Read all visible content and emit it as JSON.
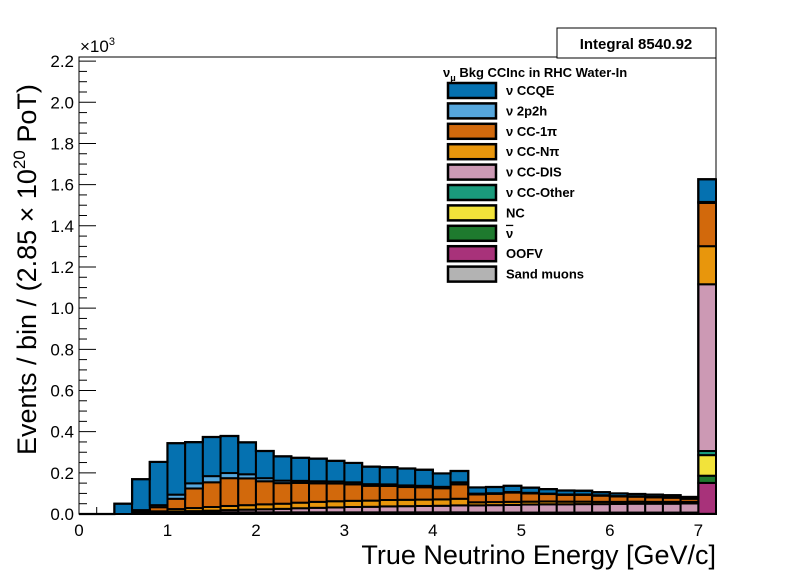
{
  "chart_data": {
    "type": "bar",
    "stacked": true,
    "histogram": true,
    "stats_box": "Integral 8540.92",
    "xlabel": "True Neutrino Energy [GeV/c]",
    "ylabel": "Events / bin / (2.85 × 10^20 PoT)",
    "ylabel_parts": {
      "prefix": "Events / bin / (2.85 × 10",
      "sup": "20",
      "suffix": " PoT)"
    },
    "y_multiplier": {
      "base": "×10",
      "exp": "3"
    },
    "xlim": [
      0,
      7.2
    ],
    "ylim": [
      0,
      2.22
    ],
    "x_ticks": [
      "0",
      "1",
      "2",
      "3",
      "4",
      "5",
      "6",
      "7"
    ],
    "y_ticks": [
      "0.0",
      "0.2",
      "0.4",
      "0.6",
      "0.8",
      "1.0",
      "1.2",
      "1.4",
      "1.6",
      "1.8",
      "2.0",
      "2.2"
    ],
    "legend": {
      "header": {
        "nu": "ν",
        "sub": "μ",
        "text": " Bkg CCInc in RHC Water-In"
      },
      "placement": "top-right"
    },
    "bin_edges": [
      0,
      0.2,
      0.4,
      0.6,
      0.8,
      1.0,
      1.2,
      1.4,
      1.6,
      1.8,
      2.0,
      2.2,
      2.4,
      2.6,
      2.8,
      3.0,
      3.2,
      3.4,
      3.6,
      3.8,
      4.0,
      4.2,
      4.4,
      4.6,
      4.8,
      5.0,
      5.2,
      5.4,
      5.6,
      5.8,
      6.0,
      6.2,
      6.4,
      6.6,
      6.8,
      7.0,
      7.2
    ],
    "series": [
      {
        "name": "Sand muons",
        "label": "Sand muons",
        "color": "#b3b3b3",
        "values": [
          0,
          0,
          0,
          0,
          0,
          0,
          0,
          0,
          0,
          0,
          0,
          0,
          0,
          0,
          0,
          0,
          0,
          0,
          0,
          0,
          0,
          0,
          0,
          0,
          0,
          0,
          0,
          0,
          0,
          0,
          0,
          0,
          0,
          0,
          0,
          0.001
        ]
      },
      {
        "name": "OOFV",
        "label": "OOFV",
        "color": "#a8327a",
        "values": [
          0,
          0,
          0,
          0.001,
          0.001,
          0.002,
          0.002,
          0.002,
          0.002,
          0.002,
          0.002,
          0.002,
          0.002,
          0.002,
          0.002,
          0.002,
          0.002,
          0.002,
          0.002,
          0.002,
          0.002,
          0.002,
          0.002,
          0.002,
          0.002,
          0.002,
          0.002,
          0.002,
          0.002,
          0.002,
          0.002,
          0.002,
          0.002,
          0.002,
          0.002,
          0.15
        ]
      },
      {
        "name": "νbar",
        "label": "ν",
        "overline": true,
        "color": "#1e7a2e",
        "values": [
          0,
          0,
          0,
          0,
          0,
          0.001,
          0.001,
          0.001,
          0.001,
          0.001,
          0.001,
          0.001,
          0.001,
          0.001,
          0.001,
          0.001,
          0.001,
          0.001,
          0.001,
          0.001,
          0.001,
          0.001,
          0.001,
          0.001,
          0.001,
          0.001,
          0.001,
          0.001,
          0.001,
          0.001,
          0.001,
          0.001,
          0.001,
          0.001,
          0.001,
          0.035
        ]
      },
      {
        "name": "NC",
        "label": "NC",
        "color": "#f2e33a",
        "values": [
          0,
          0,
          0,
          0.002,
          0.003,
          0.004,
          0.004,
          0.004,
          0.004,
          0.004,
          0.004,
          0.004,
          0.004,
          0.004,
          0.004,
          0.004,
          0.004,
          0.004,
          0.004,
          0.004,
          0.004,
          0.004,
          0.003,
          0.003,
          0.003,
          0.003,
          0.003,
          0.003,
          0.003,
          0.003,
          0.003,
          0.003,
          0.003,
          0.003,
          0.003,
          0.1
        ]
      },
      {
        "name": "ν CC-Other",
        "label": "ν CC-Other",
        "color": "#1a9b7c",
        "values": [
          0,
          0,
          0,
          0,
          0,
          0.001,
          0.001,
          0.001,
          0.001,
          0.001,
          0.001,
          0.001,
          0.001,
          0.001,
          0.001,
          0.001,
          0.001,
          0.001,
          0.001,
          0.001,
          0.001,
          0.001,
          0.001,
          0.001,
          0.001,
          0.001,
          0.001,
          0.001,
          0.001,
          0.001,
          0.001,
          0.001,
          0.001,
          0.001,
          0.001,
          0.02
        ]
      },
      {
        "name": "ν CC-DIS",
        "label": "ν CC-DIS",
        "color": "#cc99b4",
        "values": [
          0,
          0,
          0,
          0,
          0.002,
          0.004,
          0.006,
          0.008,
          0.011,
          0.013,
          0.015,
          0.017,
          0.02,
          0.022,
          0.024,
          0.026,
          0.027,
          0.029,
          0.03,
          0.031,
          0.032,
          0.034,
          0.035,
          0.036,
          0.037,
          0.039,
          0.04,
          0.04,
          0.041,
          0.041,
          0.042,
          0.043,
          0.043,
          0.043,
          0.044,
          0.81
        ]
      },
      {
        "name": "ν CC-Nπ",
        "label": "ν CC-Nπ",
        "color": "#e8960c",
        "values": [
          0,
          0,
          0,
          0.003,
          0.007,
          0.012,
          0.015,
          0.018,
          0.02,
          0.022,
          0.024,
          0.025,
          0.027,
          0.029,
          0.03,
          0.03,
          0.03,
          0.031,
          0.031,
          0.031,
          0.031,
          0.032,
          0.015,
          0.015,
          0.015,
          0.014,
          0.014,
          0.013,
          0.012,
          0.011,
          0.01,
          0.01,
          0.009,
          0.009,
          0.008,
          0.185
        ]
      },
      {
        "name": "ν CC-1π",
        "label": "ν CC-1π",
        "color": "#d2690c",
        "values": [
          0,
          0,
          0,
          0.009,
          0.02,
          0.05,
          0.095,
          0.12,
          0.135,
          0.13,
          0.112,
          0.1,
          0.096,
          0.09,
          0.086,
          0.08,
          0.072,
          0.068,
          0.062,
          0.06,
          0.054,
          0.07,
          0.038,
          0.04,
          0.045,
          0.04,
          0.036,
          0.033,
          0.033,
          0.03,
          0.026,
          0.024,
          0.022,
          0.02,
          0.015,
          0.21
        ]
      },
      {
        "name": "ν 2p2h",
        "label": "ν 2p2h",
        "color": "#56a7dd",
        "values": [
          0,
          0,
          0,
          0.004,
          0.01,
          0.02,
          0.025,
          0.03,
          0.025,
          0.02,
          0.015,
          0.012,
          0.01,
          0.01,
          0.01,
          0.01,
          0.008,
          0.008,
          0.008,
          0.007,
          0.007,
          0.01,
          0.004,
          0.003,
          0.003,
          0.003,
          0.002,
          0.002,
          0.002,
          0.002,
          0.002,
          0.002,
          0.002,
          0.002,
          0.001,
          0.005
        ]
      },
      {
        "name": "ν CCQE",
        "label": "ν CCQE",
        "color": "#0571b0",
        "values": [
          0,
          0,
          0.05,
          0.15,
          0.21,
          0.25,
          0.2,
          0.19,
          0.18,
          0.155,
          0.132,
          0.118,
          0.112,
          0.11,
          0.1,
          0.094,
          0.085,
          0.083,
          0.082,
          0.078,
          0.065,
          0.055,
          0.03,
          0.03,
          0.03,
          0.025,
          0.022,
          0.019,
          0.018,
          0.015,
          0.013,
          0.011,
          0.011,
          0.01,
          0.008,
          0.11
        ]
      }
    ],
    "legend_order": [
      "ν CCQE",
      "ν 2p2h",
      "ν CC-1π",
      "ν CC-Nπ",
      "ν CC-DIS",
      "ν CC-Other",
      "NC",
      "νbar",
      "OOFV",
      "Sand muons"
    ]
  }
}
